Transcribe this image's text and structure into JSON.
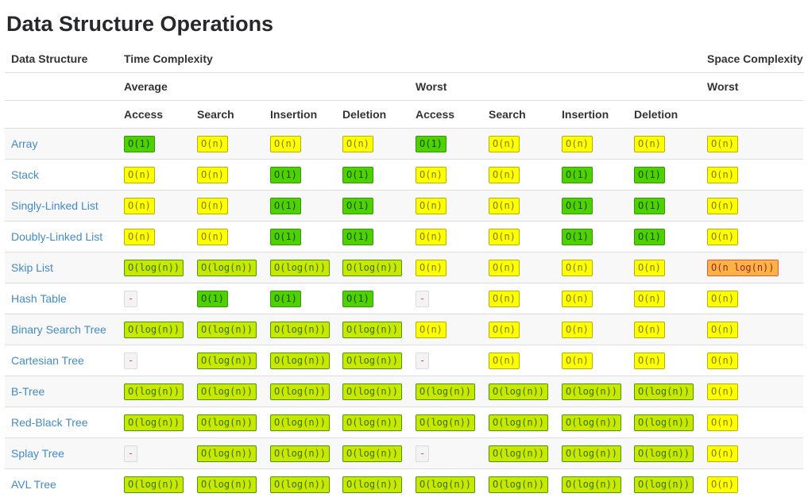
{
  "page": {
    "title": "Data Structure Operations"
  },
  "table": {
    "group_headers": {
      "data_structure": "Data Structure",
      "time_complexity": "Time Complexity",
      "space_complexity": "Space Complexity"
    },
    "case_headers": {
      "average": "Average",
      "worst": "Worst",
      "space_worst": "Worst"
    },
    "op_headers": [
      "Access",
      "Search",
      "Insertion",
      "Deletion",
      "Access",
      "Search",
      "Insertion",
      "Deletion"
    ],
    "rows": [
      {
        "name": "Array",
        "cells": [
          {
            "text": "O(1)",
            "level": "green"
          },
          {
            "text": "O(n)",
            "level": "yellow"
          },
          {
            "text": "O(n)",
            "level": "yellow"
          },
          {
            "text": "O(n)",
            "level": "yellow"
          },
          {
            "text": "O(1)",
            "level": "green"
          },
          {
            "text": "O(n)",
            "level": "yellow"
          },
          {
            "text": "O(n)",
            "level": "yellow"
          },
          {
            "text": "O(n)",
            "level": "yellow"
          },
          {
            "text": "O(n)",
            "level": "yellow"
          }
        ]
      },
      {
        "name": "Stack",
        "cells": [
          {
            "text": "O(n)",
            "level": "yellow"
          },
          {
            "text": "O(n)",
            "level": "yellow"
          },
          {
            "text": "O(1)",
            "level": "green"
          },
          {
            "text": "O(1)",
            "level": "green"
          },
          {
            "text": "O(n)",
            "level": "yellow"
          },
          {
            "text": "O(n)",
            "level": "yellow"
          },
          {
            "text": "O(1)",
            "level": "green"
          },
          {
            "text": "O(1)",
            "level": "green"
          },
          {
            "text": "O(n)",
            "level": "yellow"
          }
        ]
      },
      {
        "name": "Singly-Linked List",
        "cells": [
          {
            "text": "O(n)",
            "level": "yellow"
          },
          {
            "text": "O(n)",
            "level": "yellow"
          },
          {
            "text": "O(1)",
            "level": "green"
          },
          {
            "text": "O(1)",
            "level": "green"
          },
          {
            "text": "O(n)",
            "level": "yellow"
          },
          {
            "text": "O(n)",
            "level": "yellow"
          },
          {
            "text": "O(1)",
            "level": "green"
          },
          {
            "text": "O(1)",
            "level": "green"
          },
          {
            "text": "O(n)",
            "level": "yellow"
          }
        ]
      },
      {
        "name": "Doubly-Linked List",
        "cells": [
          {
            "text": "O(n)",
            "level": "yellow"
          },
          {
            "text": "O(n)",
            "level": "yellow"
          },
          {
            "text": "O(1)",
            "level": "green"
          },
          {
            "text": "O(1)",
            "level": "green"
          },
          {
            "text": "O(n)",
            "level": "yellow"
          },
          {
            "text": "O(n)",
            "level": "yellow"
          },
          {
            "text": "O(1)",
            "level": "green"
          },
          {
            "text": "O(1)",
            "level": "green"
          },
          {
            "text": "O(n)",
            "level": "yellow"
          }
        ]
      },
      {
        "name": "Skip List",
        "cells": [
          {
            "text": "O(log(n))",
            "level": "yellowgreen"
          },
          {
            "text": "O(log(n))",
            "level": "yellowgreen"
          },
          {
            "text": "O(log(n))",
            "level": "yellowgreen"
          },
          {
            "text": "O(log(n))",
            "level": "yellowgreen"
          },
          {
            "text": "O(n)",
            "level": "yellow"
          },
          {
            "text": "O(n)",
            "level": "yellow"
          },
          {
            "text": "O(n)",
            "level": "yellow"
          },
          {
            "text": "O(n)",
            "level": "yellow"
          },
          {
            "text": "O(n log(n))",
            "level": "orange"
          }
        ]
      },
      {
        "name": "Hash Table",
        "cells": [
          {
            "text": "-",
            "level": "na"
          },
          {
            "text": "O(1)",
            "level": "green"
          },
          {
            "text": "O(1)",
            "level": "green"
          },
          {
            "text": "O(1)",
            "level": "green"
          },
          {
            "text": "-",
            "level": "na"
          },
          {
            "text": "O(n)",
            "level": "yellow"
          },
          {
            "text": "O(n)",
            "level": "yellow"
          },
          {
            "text": "O(n)",
            "level": "yellow"
          },
          {
            "text": "O(n)",
            "level": "yellow"
          }
        ]
      },
      {
        "name": "Binary Search Tree",
        "cells": [
          {
            "text": "O(log(n))",
            "level": "yellowgreen"
          },
          {
            "text": "O(log(n))",
            "level": "yellowgreen"
          },
          {
            "text": "O(log(n))",
            "level": "yellowgreen"
          },
          {
            "text": "O(log(n))",
            "level": "yellowgreen"
          },
          {
            "text": "O(n)",
            "level": "yellow"
          },
          {
            "text": "O(n)",
            "level": "yellow"
          },
          {
            "text": "O(n)",
            "level": "yellow"
          },
          {
            "text": "O(n)",
            "level": "yellow"
          },
          {
            "text": "O(n)",
            "level": "yellow"
          }
        ]
      },
      {
        "name": "Cartesian Tree",
        "cells": [
          {
            "text": "-",
            "level": "na"
          },
          {
            "text": "O(log(n))",
            "level": "yellowgreen"
          },
          {
            "text": "O(log(n))",
            "level": "yellowgreen"
          },
          {
            "text": "O(log(n))",
            "level": "yellowgreen"
          },
          {
            "text": "-",
            "level": "na"
          },
          {
            "text": "O(n)",
            "level": "yellow"
          },
          {
            "text": "O(n)",
            "level": "yellow"
          },
          {
            "text": "O(n)",
            "level": "yellow"
          },
          {
            "text": "O(n)",
            "level": "yellow"
          }
        ]
      },
      {
        "name": "B-Tree",
        "cells": [
          {
            "text": "O(log(n))",
            "level": "yellowgreen"
          },
          {
            "text": "O(log(n))",
            "level": "yellowgreen"
          },
          {
            "text": "O(log(n))",
            "level": "yellowgreen"
          },
          {
            "text": "O(log(n))",
            "level": "yellowgreen"
          },
          {
            "text": "O(log(n))",
            "level": "yellowgreen"
          },
          {
            "text": "O(log(n))",
            "level": "yellowgreen"
          },
          {
            "text": "O(log(n))",
            "level": "yellowgreen"
          },
          {
            "text": "O(log(n))",
            "level": "yellowgreen"
          },
          {
            "text": "O(n)",
            "level": "yellow"
          }
        ]
      },
      {
        "name": "Red-Black Tree",
        "cells": [
          {
            "text": "O(log(n))",
            "level": "yellowgreen"
          },
          {
            "text": "O(log(n))",
            "level": "yellowgreen"
          },
          {
            "text": "O(log(n))",
            "level": "yellowgreen"
          },
          {
            "text": "O(log(n))",
            "level": "yellowgreen"
          },
          {
            "text": "O(log(n))",
            "level": "yellowgreen"
          },
          {
            "text": "O(log(n))",
            "level": "yellowgreen"
          },
          {
            "text": "O(log(n))",
            "level": "yellowgreen"
          },
          {
            "text": "O(log(n))",
            "level": "yellowgreen"
          },
          {
            "text": "O(n)",
            "level": "yellow"
          }
        ]
      },
      {
        "name": "Splay Tree",
        "cells": [
          {
            "text": "-",
            "level": "na"
          },
          {
            "text": "O(log(n))",
            "level": "yellowgreen"
          },
          {
            "text": "O(log(n))",
            "level": "yellowgreen"
          },
          {
            "text": "O(log(n))",
            "level": "yellowgreen"
          },
          {
            "text": "-",
            "level": "na"
          },
          {
            "text": "O(log(n))",
            "level": "yellowgreen"
          },
          {
            "text": "O(log(n))",
            "level": "yellowgreen"
          },
          {
            "text": "O(log(n))",
            "level": "yellowgreen"
          },
          {
            "text": "O(n)",
            "level": "yellow"
          }
        ]
      },
      {
        "name": "AVL Tree",
        "cells": [
          {
            "text": "O(log(n))",
            "level": "yellowgreen"
          },
          {
            "text": "O(log(n))",
            "level": "yellowgreen"
          },
          {
            "text": "O(log(n))",
            "level": "yellowgreen"
          },
          {
            "text": "O(log(n))",
            "level": "yellowgreen"
          },
          {
            "text": "O(log(n))",
            "level": "yellowgreen"
          },
          {
            "text": "O(log(n))",
            "level": "yellowgreen"
          },
          {
            "text": "O(log(n))",
            "level": "yellowgreen"
          },
          {
            "text": "O(log(n))",
            "level": "yellowgreen"
          },
          {
            "text": "O(n)",
            "level": "yellow"
          }
        ]
      }
    ]
  },
  "colors": {
    "link": "#428bca",
    "heading_text": "#26282b",
    "header_text": "#333333",
    "row_divider": "#dddddd",
    "row_stripe": "#f8f8f8",
    "green_bg": "#4fd000",
    "green_border": "#2e9c00",
    "green_text": "#164e00",
    "yellowgreen_bg": "#c8e800",
    "yellowgreen_border": "#459b00",
    "yellowgreen_text": "#3b6f00",
    "yellow_bg": "#ffff00",
    "yellow_border": "#b2b200",
    "yellow_text": "#7d7b00",
    "orange_bg": "#ffb347",
    "orange_border": "#e7573b",
    "orange_text": "#99251c",
    "na_bg": "#f3f3f3",
    "na_border": "#dcdcdc",
    "na_text": "#ce4844"
  }
}
